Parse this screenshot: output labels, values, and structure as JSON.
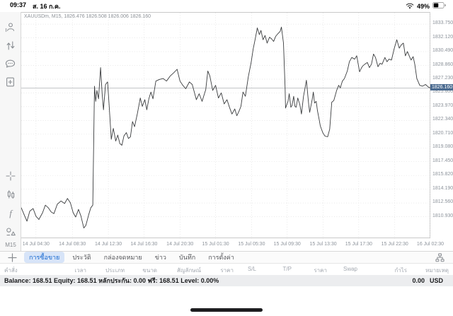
{
  "status_bar": {
    "time": "09:37",
    "date": "ส. 16 ก.ค.",
    "battery_percent": "49%"
  },
  "sidebar": {
    "top_icons": [
      "account",
      "trade",
      "chat",
      "new-order"
    ],
    "bottom_icons": [
      "crosshair",
      "chart-type",
      "indicators",
      "objects"
    ],
    "timeframe": "M15"
  },
  "chart_data": {
    "type": "line",
    "title": "XAUUSDm, M15, 1826.476 1826.508 1826.006 1826.160",
    "symbol": "XAUUSDm",
    "timeframe": "M15",
    "open": 1826.476,
    "high": 1826.508,
    "low": 1826.006,
    "close": 1826.16,
    "current_price": 1826.16,
    "current_price_label": "1826.160",
    "line_color": "#3a3c3e",
    "grid": true,
    "legend_position": "none",
    "ylim": [
      1808.3,
      1835.1
    ],
    "y_ticks": [
      "1833.750",
      "1832.120",
      "1830.490",
      "1828.860",
      "1827.230",
      "1825.600",
      "1823.970",
      "1822.340",
      "1820.710",
      "1819.080",
      "1817.450",
      "1815.820",
      "1814.190",
      "1812.560",
      "1810.930"
    ],
    "x_ticks": [
      {
        "pos": 0.036,
        "label": "14 Jul 04:30"
      },
      {
        "pos": 0.125,
        "label": "14 Jul 08:30"
      },
      {
        "pos": 0.213,
        "label": "14 Jul 12:30"
      },
      {
        "pos": 0.3,
        "label": "14 Jul 16:30"
      },
      {
        "pos": 0.388,
        "label": "14 Jul 20:30"
      },
      {
        "pos": 0.475,
        "label": "15 Jul 01:30"
      },
      {
        "pos": 0.563,
        "label": "15 Jul 05:30"
      },
      {
        "pos": 0.65,
        "label": "15 Jul 09:30"
      },
      {
        "pos": 0.738,
        "label": "15 Jul 13:30"
      },
      {
        "pos": 0.825,
        "label": "15 Jul 17:30"
      },
      {
        "pos": 0.913,
        "label": "15 Jul 22:30"
      },
      {
        "pos": 1.0,
        "label": "16 Jul 02:30"
      }
    ],
    "series": [
      {
        "name": "XAUUSDm M15",
        "points": [
          [
            0,
            1812.0
          ],
          [
            0.007,
            1811.2
          ],
          [
            0.014,
            1810.4
          ],
          [
            0.021,
            1811.6
          ],
          [
            0.029,
            1811.9
          ],
          [
            0.036,
            1811.0
          ],
          [
            0.043,
            1810.6
          ],
          [
            0.052,
            1811.4
          ],
          [
            0.059,
            1812.3
          ],
          [
            0.066,
            1812.0
          ],
          [
            0.073,
            1811.5
          ],
          [
            0.08,
            1811.3
          ],
          [
            0.088,
            1812.4
          ],
          [
            0.097,
            1812.8
          ],
          [
            0.106,
            1812.5
          ],
          [
            0.113,
            1813.1
          ],
          [
            0.12,
            1812.6
          ],
          [
            0.127,
            1811.4
          ],
          [
            0.133,
            1810.9
          ],
          [
            0.14,
            1811.8
          ],
          [
            0.146,
            1811.0
          ],
          [
            0.153,
            1809.6
          ],
          [
            0.158,
            1809.9
          ],
          [
            0.165,
            1811.2
          ],
          [
            0.17,
            1812.0
          ],
          [
            0.175,
            1812.3
          ],
          [
            0.179,
            1826.4
          ],
          [
            0.182,
            1824.6
          ],
          [
            0.185,
            1825.9
          ],
          [
            0.189,
            1824.9
          ],
          [
            0.194,
            1828.6
          ],
          [
            0.198,
            1825.4
          ],
          [
            0.201,
            1823.6
          ],
          [
            0.206,
            1826.6
          ],
          [
            0.211,
            1826.9
          ],
          [
            0.215,
            1824.0
          ],
          [
            0.22,
            1820.1
          ],
          [
            0.225,
            1821.4
          ],
          [
            0.231,
            1819.9
          ],
          [
            0.236,
            1820.6
          ],
          [
            0.241,
            1819.6
          ],
          [
            0.246,
            1819.4
          ],
          [
            0.251,
            1820.5
          ],
          [
            0.257,
            1820.9
          ],
          [
            0.262,
            1820.2
          ],
          [
            0.267,
            1820.4
          ],
          [
            0.272,
            1822.2
          ],
          [
            0.277,
            1821.6
          ],
          [
            0.284,
            1823.2
          ],
          [
            0.291,
            1825.0
          ],
          [
            0.296,
            1824.0
          ],
          [
            0.302,
            1824.8
          ],
          [
            0.307,
            1823.6
          ],
          [
            0.312,
            1824.9
          ],
          [
            0.317,
            1825.7
          ],
          [
            0.322,
            1824.9
          ],
          [
            0.329,
            1827.0
          ],
          [
            0.338,
            1827.2
          ],
          [
            0.347,
            1827.3
          ],
          [
            0.355,
            1827.0
          ],
          [
            0.364,
            1827.6
          ],
          [
            0.373,
            1828.0
          ],
          [
            0.381,
            1828.4
          ],
          [
            0.388,
            1827.0
          ],
          [
            0.395,
            1826.5
          ],
          [
            0.402,
            1826.1
          ],
          [
            0.411,
            1826.9
          ],
          [
            0.418,
            1826.6
          ],
          [
            0.428,
            1824.8
          ],
          [
            0.435,
            1825.5
          ],
          [
            0.442,
            1824.6
          ],
          [
            0.451,
            1826.0
          ],
          [
            0.456,
            1828.2
          ],
          [
            0.461,
            1827.6
          ],
          [
            0.468,
            1825.9
          ],
          [
            0.475,
            1826.5
          ],
          [
            0.482,
            1825.0
          ],
          [
            0.489,
            1825.6
          ],
          [
            0.496,
            1824.3
          ],
          [
            0.503,
            1824.8
          ],
          [
            0.509,
            1823.9
          ],
          [
            0.515,
            1823.1
          ],
          [
            0.522,
            1823.7
          ],
          [
            0.527,
            1822.9
          ],
          [
            0.532,
            1823.4
          ],
          [
            0.537,
            1824.0
          ],
          [
            0.542,
            1825.7
          ],
          [
            0.548,
            1825.2
          ],
          [
            0.555,
            1827.5
          ],
          [
            0.562,
            1829.2
          ],
          [
            0.567,
            1830.8
          ],
          [
            0.572,
            1832.0
          ],
          [
            0.577,
            1833.3
          ],
          [
            0.582,
            1832.5
          ],
          [
            0.586,
            1833.0
          ],
          [
            0.591,
            1831.9
          ],
          [
            0.596,
            1832.4
          ],
          [
            0.601,
            1831.5
          ],
          [
            0.607,
            1832.2
          ],
          [
            0.612,
            1832.0
          ],
          [
            0.617,
            1831.7
          ],
          [
            0.622,
            1832.3
          ],
          [
            0.627,
            1832.6
          ],
          [
            0.633,
            1832.9
          ],
          [
            0.636,
            1833.4
          ],
          [
            0.641,
            1831.5
          ],
          [
            0.645,
            1826.2
          ],
          [
            0.646,
            1823.8
          ],
          [
            0.652,
            1824.6
          ],
          [
            0.655,
            1825.5
          ],
          [
            0.659,
            1823.9
          ],
          [
            0.662,
            1824.1
          ],
          [
            0.666,
            1825.2
          ],
          [
            0.669,
            1824.0
          ],
          [
            0.672,
            1823.9
          ],
          [
            0.676,
            1825.0
          ],
          [
            0.681,
            1824.2
          ],
          [
            0.685,
            1823.1
          ],
          [
            0.69,
            1825.2
          ],
          [
            0.693,
            1826.0
          ],
          [
            0.697,
            1827.1
          ],
          [
            0.702,
            1824.5
          ],
          [
            0.705,
            1823.3
          ],
          [
            0.711,
            1824.8
          ],
          [
            0.714,
            1825.7
          ],
          [
            0.717,
            1824.4
          ],
          [
            0.721,
            1824.6
          ],
          [
            0.724,
            1823.5
          ],
          [
            0.728,
            1822.5
          ],
          [
            0.731,
            1821.7
          ],
          [
            0.737,
            1820.9
          ],
          [
            0.742,
            1820.5
          ],
          [
            0.749,
            1820.4
          ],
          [
            0.754,
            1821.3
          ],
          [
            0.759,
            1824.5
          ],
          [
            0.764,
            1824.7
          ],
          [
            0.771,
            1825.9
          ],
          [
            0.776,
            1826.5
          ],
          [
            0.78,
            1826.2
          ],
          [
            0.785,
            1827.0
          ],
          [
            0.79,
            1827.3
          ],
          [
            0.797,
            1828.2
          ],
          [
            0.802,
            1829.3
          ],
          [
            0.808,
            1829.8
          ],
          [
            0.815,
            1829.6
          ],
          [
            0.82,
            1830.0
          ],
          [
            0.827,
            1828.1
          ],
          [
            0.832,
            1828.6
          ],
          [
            0.835,
            1828.8
          ],
          [
            0.84,
            1829.0
          ],
          [
            0.846,
            1829.2
          ],
          [
            0.851,
            1828.6
          ],
          [
            0.856,
            1829.0
          ],
          [
            0.861,
            1830.2
          ],
          [
            0.866,
            1829.8
          ],
          [
            0.872,
            1828.7
          ],
          [
            0.877,
            1829.1
          ],
          [
            0.882,
            1829.0
          ],
          [
            0.889,
            1829.8
          ],
          [
            0.894,
            1829.3
          ],
          [
            0.899,
            1829.6
          ],
          [
            0.905,
            1829.5
          ],
          [
            0.912,
            1830.9
          ],
          [
            0.918,
            1831.9
          ],
          [
            0.924,
            1830.9
          ],
          [
            0.929,
            1831.3
          ],
          [
            0.934,
            1831.5
          ],
          [
            0.939,
            1830.0
          ],
          [
            0.944,
            1830.5
          ],
          [
            0.95,
            1829.8
          ],
          [
            0.953,
            1829.5
          ],
          [
            0.958,
            1829.9
          ],
          [
            0.962,
            1829.0
          ],
          [
            0.967,
            1827.3
          ],
          [
            0.974,
            1826.5
          ],
          [
            0.981,
            1826.4
          ],
          [
            0.988,
            1826.6
          ],
          [
            0.995,
            1826.3
          ],
          [
            1,
            1826.2
          ]
        ]
      }
    ]
  },
  "tab_bar": {
    "add_label": "+",
    "tabs": [
      "การซื้อขาย",
      "ประวัติ",
      "กล่องจดหมาย",
      "ข่าว",
      "บันทึก",
      "การตั้งค่า"
    ],
    "selected_tab": "การซื้อขาย"
  },
  "order_table": {
    "headers": [
      "คำสั่ง",
      "เวลา",
      "ประเภท",
      "ขนาด",
      "สัญลักษณ์",
      "ราคา",
      "S/L",
      "T/P",
      "ราคา",
      "Swap",
      "กำไร",
      "หมายเหตุ"
    ]
  },
  "account_bar": {
    "summary": "Balance: 168.51 Equity: 168.51 หลักประกัน: 0.00 ฟรี: 168.51 Level: 0.00%",
    "profit": "0.00",
    "currency": "USD"
  },
  "colors": {
    "accent_blue": "#1668cf",
    "tab_pill_bg": "#d7e4f8",
    "price_tag_bg": "#4b6b90",
    "grid": "#e0e0e0",
    "axis_text": "#8d939b"
  }
}
